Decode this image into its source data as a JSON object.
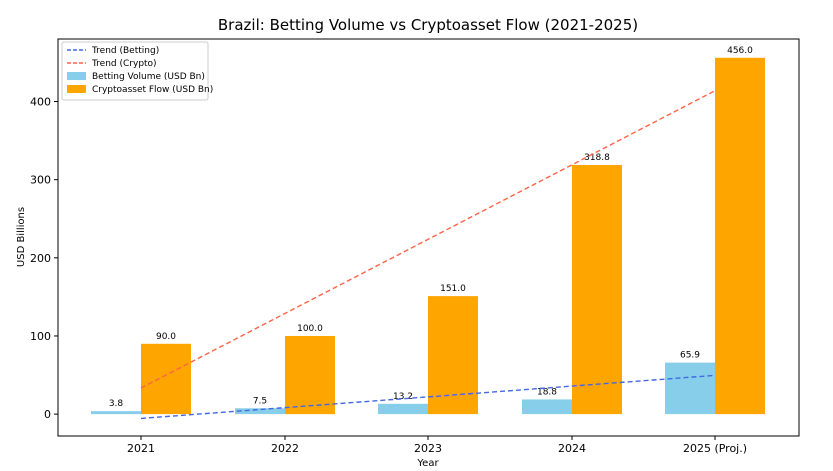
{
  "chart_data": {
    "type": "bar",
    "title": "Brazil: Betting Volume vs Cryptoasset Flow (2021-2025)",
    "xlabel": "Year",
    "ylabel": "USD Billions",
    "categories": [
      "2021",
      "2022",
      "2023",
      "2024",
      "2025 (Proj.)"
    ],
    "ylim": [
      -28,
      480
    ],
    "yticks": [
      0,
      100,
      200,
      300,
      400
    ],
    "grid": false,
    "legend_position": "top-left",
    "series": [
      {
        "name": "Betting Volume (USD Bn)",
        "values": [
          3.8,
          7.5,
          13.2,
          18.8,
          65.9
        ],
        "labels": [
          "3.8",
          "7.5",
          "13.2",
          "18.8",
          "65.9"
        ],
        "color": "#87ceeb"
      },
      {
        "name": "Cryptoasset Flow (USD Bn)",
        "values": [
          90.0,
          100.0,
          151.0,
          318.8,
          456.0
        ],
        "labels": [
          "90.0",
          "100.0",
          "151.0",
          "318.8",
          "456.0"
        ],
        "color": "#ffa500"
      }
    ],
    "trends": [
      {
        "name": "Trend (Betting)",
        "start": -5.5,
        "end": 49.6,
        "color": "#4169e1"
      },
      {
        "name": "Trend (Crypto)",
        "start": 33.4,
        "end": 413.8,
        "color": "#ff6347"
      }
    ]
  }
}
